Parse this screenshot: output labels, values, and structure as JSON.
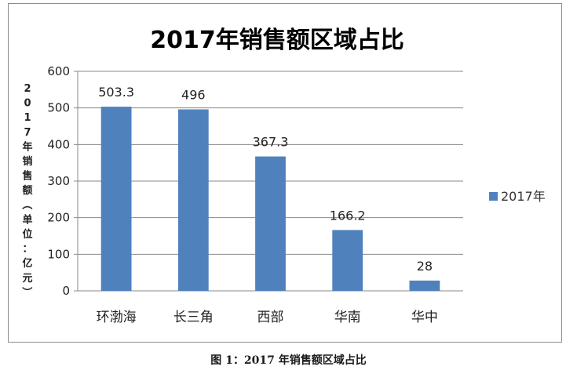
{
  "chart_data": {
    "type": "bar",
    "title": "2017年销售额区域占比",
    "ylabel": "2017年销售额（单位：亿元）",
    "xlabel": "",
    "categories": [
      "环渤海",
      "长三角",
      "西部",
      "华南",
      "华中"
    ],
    "series": [
      {
        "name": "2017年",
        "values": [
          503.3,
          496,
          367.3,
          166.2,
          28
        ],
        "color": "#4f81bd"
      }
    ],
    "data_labels": [
      "503.3",
      "496",
      "367.3",
      "166.2",
      "28"
    ],
    "ylim": [
      0,
      600
    ],
    "yticks": [
      0,
      100,
      200,
      300,
      400,
      500,
      600
    ],
    "grid": true,
    "legend_position": "right"
  },
  "caption": "图 1：2017 年销售额区域占比"
}
